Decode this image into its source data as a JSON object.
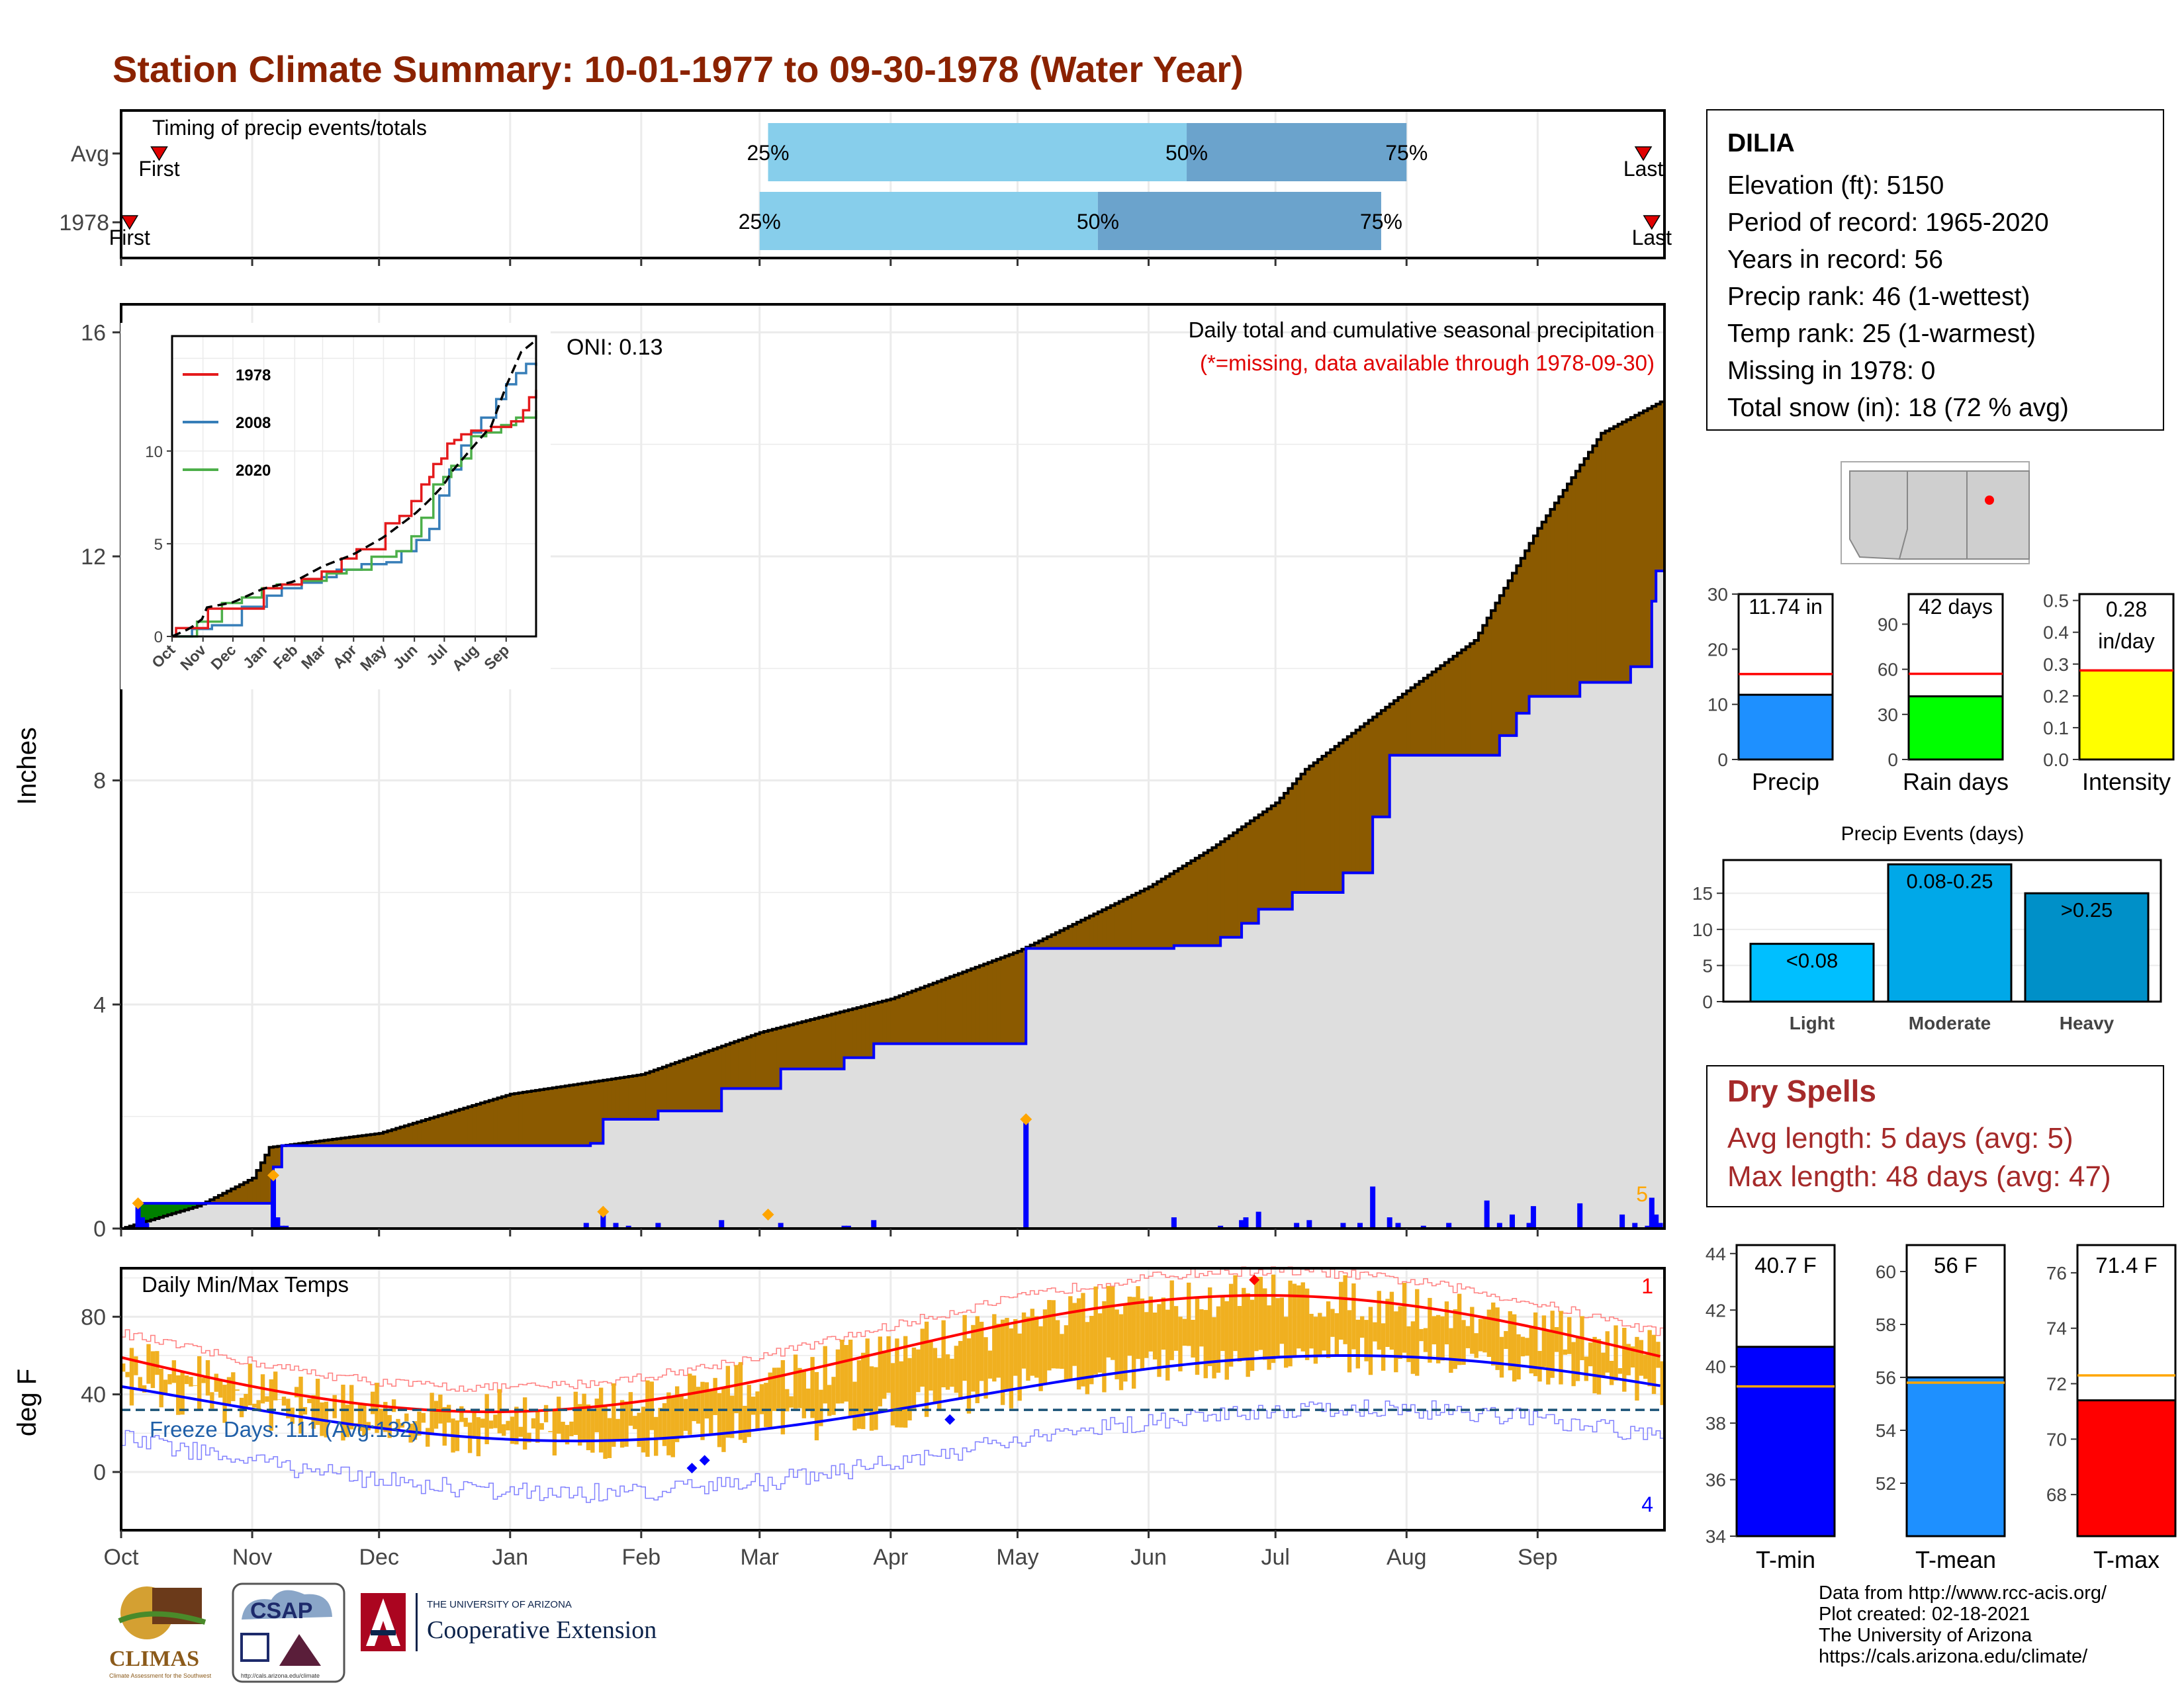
{
  "title": "Station Climate Summary: 10-01-1977 to 09-30-1978 (Water Year)",
  "timing": {
    "label": "Timing of precip events/totals",
    "rows": [
      {
        "name": "Avg",
        "first_label": "First",
        "last_label": "Last",
        "first_date": "1977-10-10",
        "last_date": "1978-09-26",
        "q25": "1978-03-03",
        "q50": "1978-06-10",
        "q75": "1978-08-01"
      },
      {
        "name": "1978",
        "first_label": "First",
        "last_label": "Last",
        "first_date": "1977-10-03",
        "last_date": "1978-09-28",
        "q25": "1978-03-01",
        "q50": "1978-05-20",
        "q75": "1978-07-26"
      }
    ],
    "pct_labels": [
      "25%",
      "50%",
      "75%"
    ],
    "colors": {
      "q1": "#87ceeb",
      "q2": "#6ba3cc",
      "marker": "#e00000"
    }
  },
  "precip_chart": {
    "ylabel": "Inches",
    "title_line1": "Daily total and cumulative seasonal precipitation",
    "title_line2": "(*=missing, data available through 1978-09-30)",
    "oni": "ONI: 0.13",
    "corner_count": "5",
    "yticks": [
      0,
      4,
      8,
      12,
      16
    ],
    "months": [
      "Oct",
      "Nov",
      "Dec",
      "Jan",
      "Feb",
      "Mar",
      "Apr",
      "May",
      "Jun",
      "Jul",
      "Aug",
      "Sep"
    ]
  },
  "inset": {
    "series": [
      {
        "name": "1978",
        "color": "#e41a1c"
      },
      {
        "name": "2008",
        "color": "#377eb8"
      },
      {
        "name": "2020",
        "color": "#4daf4a"
      }
    ],
    "yticks": [
      0,
      5,
      10
    ],
    "months": [
      "Oct",
      "Nov",
      "Dec",
      "Jan",
      "Feb",
      "Mar",
      "Apr",
      "May",
      "Jun",
      "Jul",
      "Aug",
      "Sep"
    ]
  },
  "temp_chart": {
    "ylabel": "deg F",
    "title": "Daily Min/Max Temps",
    "freeze_label": "Freeze Days: 111 (Avg:132)",
    "top_count": "1",
    "bottom_count": "4",
    "yticks": [
      0,
      40,
      80
    ]
  },
  "station": {
    "name": "DILIA",
    "lines": [
      "Elevation (ft): 5150",
      "Period of record: 1965-2020",
      "Years in record: 56",
      "Precip rank: 46 (1-wettest)",
      "Temp rank: 25 (1-warmest)",
      "Missing in 1978: 0",
      "Total snow (in): 18 (72 % avg)"
    ]
  },
  "summary_bars": [
    {
      "name": "Precip",
      "label": "11.74 in",
      "value": 11.74,
      "avg": 15.5,
      "ymax": 30,
      "yticks": [
        0,
        10,
        20,
        30
      ],
      "color": "#1e90ff"
    },
    {
      "name": "Rain days",
      "label": "42 days",
      "value": 42,
      "avg": 57,
      "ymax": 110,
      "yticks": [
        0,
        30,
        60,
        90
      ],
      "color": "#00ff00"
    },
    {
      "name": "Intensity",
      "label": "0.28 in/day",
      "value": 0.28,
      "avg": 0.28,
      "ymax": 0.52,
      "yticks": [
        "0.0",
        "0.1",
        "0.2",
        "0.3",
        "0.4",
        "0.5"
      ],
      "color": "#ffff00"
    }
  ],
  "events": {
    "title": "Precip Events (days)",
    "yticks": [
      0,
      5,
      10,
      15
    ],
    "bars": [
      {
        "name": "Light",
        "label": "<0.08",
        "value": 8,
        "color": "#00bfff"
      },
      {
        "name": "Moderate",
        "label": "0.08-0.25",
        "value": 19,
        "color": "#00a8e8"
      },
      {
        "name": "Heavy",
        "label": ">0.25",
        "value": 15,
        "color": "#0090c8"
      }
    ]
  },
  "dry_spells": {
    "title": "Dry Spells",
    "avg_length": "Avg length: 5 days (avg: 5)",
    "max_length": "Max length: 48 days (avg: 47)"
  },
  "temp_bars": [
    {
      "name": "T-min",
      "label": "40.7 F",
      "value": 40.7,
      "avg": 39.3,
      "ymin": 34,
      "ymax": 44.3,
      "yticks": [
        34,
        36,
        38,
        40,
        42,
        44
      ],
      "color": "#0000ff"
    },
    {
      "name": "T-mean",
      "label": "56 F",
      "value": 56,
      "avg": 55.8,
      "ymin": 50,
      "ymax": 61,
      "yticks": [
        52,
        54,
        56,
        58,
        60
      ],
      "color": "#1e90ff"
    },
    {
      "name": "T-max",
      "label": "71.4 F",
      "value": 71.4,
      "avg": 72.3,
      "ymin": 66.5,
      "ymax": 77,
      "yticks": [
        68,
        70,
        72,
        74,
        76
      ],
      "color": "#ff0000"
    }
  ],
  "credits": [
    "Data from http://www.rcc-acis.org/",
    "Plot created: 02-18-2021",
    "The University of Arizona",
    "https://cals.arizona.edu/climate/"
  ],
  "logos": {
    "climas": "CLIMAS",
    "climas_sub": "Climate Assessment for the Southwest",
    "csap": "CSAP",
    "csap_url": "http://cals.arizona.edu/climate",
    "ua_small": "THE UNIVERSITY OF ARIZONA",
    "ua_big": "Cooperative Extension"
  }
}
